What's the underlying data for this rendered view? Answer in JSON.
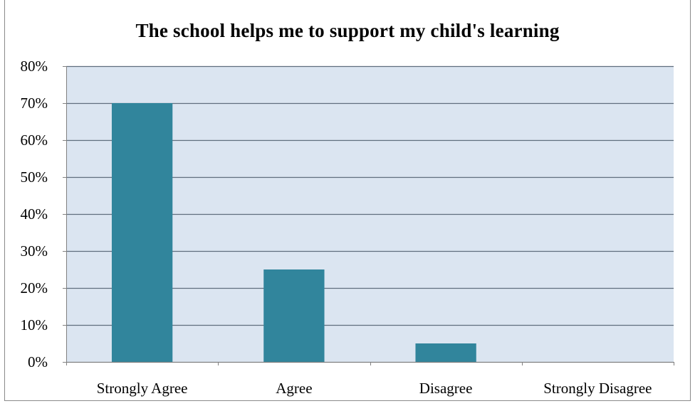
{
  "chart_data": {
    "type": "bar",
    "title": "The school helps me to support my child's learning",
    "xlabel": "",
    "ylabel": "",
    "categories": [
      "Strongly Agree",
      "Agree",
      "Disagree",
      "Strongly Disagree"
    ],
    "values": [
      0.7,
      0.25,
      0.05,
      0.0
    ],
    "ylim": [
      0,
      0.8
    ],
    "yticks": [
      0,
      0.1,
      0.2,
      0.3,
      0.4,
      0.5,
      0.6,
      0.7,
      0.8
    ],
    "ytick_labels": [
      "0%",
      "10%",
      "20%",
      "30%",
      "40%",
      "50%",
      "60%",
      "70%",
      "80%"
    ],
    "grid": true,
    "legend": "none",
    "colors": {
      "bar": "#31859C",
      "plot_background": "#DBE5F1",
      "gridline": "#5F6E7E",
      "axis": "#808080"
    }
  }
}
